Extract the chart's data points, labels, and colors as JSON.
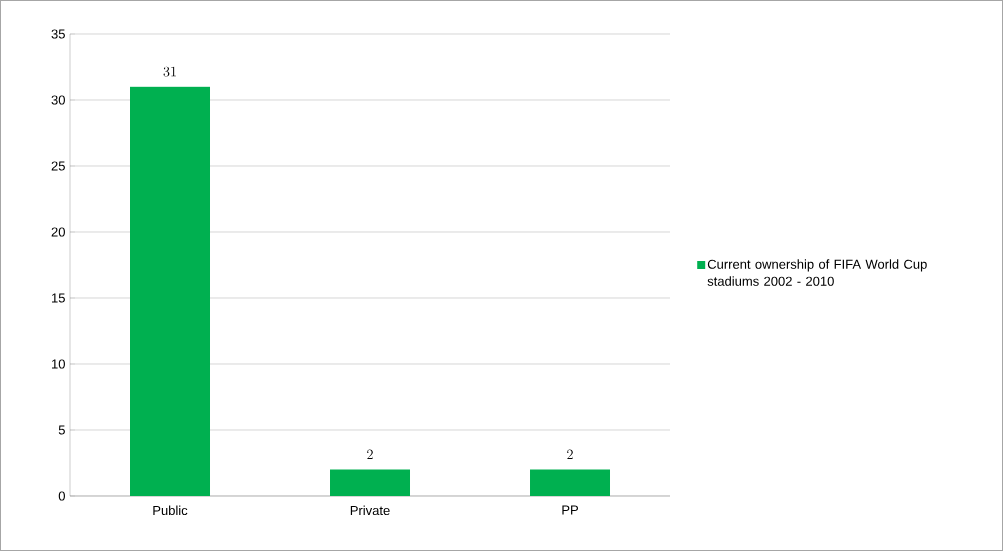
{
  "chart_data": {
    "type": "bar",
    "categories": [
      "Public",
      "Private",
      "PP"
    ],
    "series": [
      {
        "name": "Current ownership of FIFA World Cup stadiums 2002 - 2010",
        "color": "#00b050",
        "values": [
          31,
          2,
          2
        ]
      }
    ],
    "ylim": [
      0,
      35
    ],
    "yticks": [
      0,
      5,
      10,
      15,
      20,
      25,
      30,
      35
    ],
    "grid": "y",
    "legend": "right",
    "data_labels": true
  }
}
